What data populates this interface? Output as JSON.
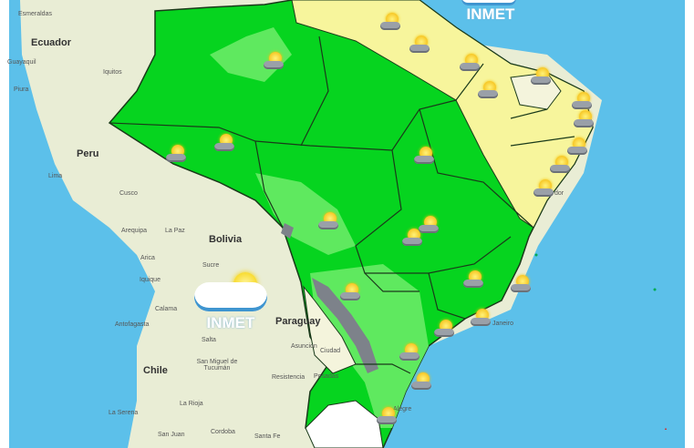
{
  "brand": {
    "name": "INMET"
  },
  "countries": [
    "Ecuador",
    "Peru",
    "Bolivia",
    "Paraguay",
    "Chile"
  ],
  "cities": [
    "Esmeraldas",
    "Guayaquil",
    "Iquitos",
    "Piura",
    "Lima",
    "Cusco",
    "Arequipa",
    "La Paz",
    "Arica",
    "Sucre",
    "Iquique",
    "Calama",
    "Antofagasta",
    "Salta",
    "Asuncion",
    "Ciudad",
    "San Miguel de Tucumán",
    "Resistencia",
    "Posadas",
    "La Rioja",
    "La Serena",
    "San Juan",
    "Cordoba",
    "Santa Fe",
    "Janeiro",
    "Alegre",
    "dor"
  ],
  "forecast_icon": "sun-with-rain-cloud-icon",
  "colors": {
    "ocean": "#5cc0ea",
    "land": "#e9edd5",
    "dry_yellow": "#f7f59c",
    "green": "#06d41f",
    "light_green": "#5fe95f",
    "gray": "#7d828a",
    "pale": "#f4f4dc",
    "white": "#ffffff"
  }
}
